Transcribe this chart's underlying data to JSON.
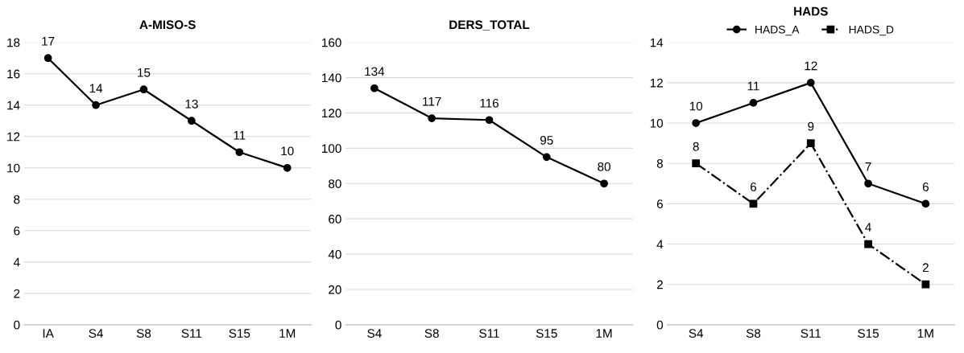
{
  "chart_data": [
    {
      "type": "line",
      "title": "A-MISO-S",
      "categories": [
        "IA",
        "S4",
        "S8",
        "S11",
        "S15",
        "1M"
      ],
      "series": [
        {
          "color": "#000000",
          "values": [
            17,
            14,
            15,
            13,
            11,
            10
          ],
          "marker": "circle",
          "line_style": "solid"
        }
      ],
      "ylim": [
        0,
        18
      ],
      "yticks": [
        0,
        2,
        4,
        6,
        8,
        10,
        12,
        14,
        16,
        18
      ],
      "grid": "y",
      "data_labels": true,
      "legend": false
    },
    {
      "type": "line",
      "title": "DERS_TOTAL",
      "categories": [
        "S4",
        "S8",
        "S11",
        "S15",
        "1M"
      ],
      "series": [
        {
          "color": "#000000",
          "values": [
            134,
            117,
            116,
            95,
            80
          ],
          "marker": "circle",
          "line_style": "solid"
        }
      ],
      "ylim": [
        0,
        160
      ],
      "yticks": [
        0,
        20,
        40,
        60,
        80,
        100,
        120,
        140,
        160
      ],
      "grid": "y",
      "data_labels": true,
      "legend": false
    },
    {
      "type": "line",
      "title": "HADS",
      "categories": [
        "S4",
        "S8",
        "S11",
        "S15",
        "1M"
      ],
      "series": [
        {
          "name": "HADS_A",
          "color": "#000000",
          "values": [
            10,
            11,
            12,
            7,
            6
          ],
          "marker": "circle",
          "line_style": "solid"
        },
        {
          "name": "HADS_D",
          "color": "#000000",
          "values": [
            8,
            6,
            9,
            4,
            2
          ],
          "marker": "square",
          "line_style": "dashed"
        }
      ],
      "ylim": [
        0,
        14
      ],
      "yticks": [
        0,
        2,
        4,
        6,
        8,
        10,
        12,
        14
      ],
      "grid": "y",
      "data_labels": true,
      "legend": "top"
    }
  ]
}
